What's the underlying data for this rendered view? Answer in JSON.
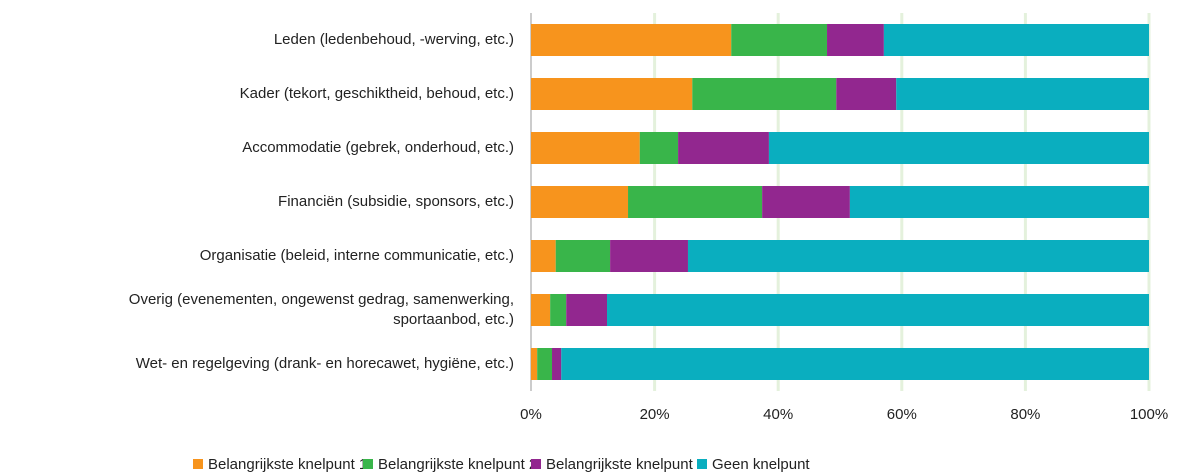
{
  "chart_data": {
    "type": "stacked-barh",
    "categories": [
      "Leden (ledenbehoud, -werving, etc.)",
      "Kader (tekort, geschiktheid, behoud, etc.)",
      "Accommodatie (gebrek, onderhoud, etc.)",
      "Financiën (subsidie, sponsors, etc.)",
      "Organisatie (beleid, interne communicatie, etc.)",
      [
        "Overig (evenementen, ongewenst gedrag, samenwerking,",
        "sportaanbod, etc.)"
      ],
      "Wet- en regelgeving (drank- en horecawet, hygiëne, etc.)"
    ],
    "series": [
      {
        "name": "Belangrijkste knelpunt 1",
        "color": "#f7941d",
        "values": [
          32.4,
          26.1,
          17.6,
          15.7,
          4.0,
          3.1,
          1.0
        ]
      },
      {
        "name": "Belangrijkste knelpunt 2",
        "color": "#39b54a",
        "values": [
          15.5,
          23.3,
          6.2,
          21.7,
          8.8,
          2.6,
          2.4
        ]
      },
      {
        "name": "Belangrijkste knelpunt 3",
        "color": "#92278f",
        "values": [
          9.2,
          9.7,
          14.7,
          14.2,
          12.6,
          6.6,
          1.5
        ]
      },
      {
        "name": "Geen knelpunt",
        "color": "#0aaebf",
        "values": [
          42.9,
          40.9,
          61.5,
          48.4,
          74.6,
          87.7,
          95.1
        ]
      }
    ],
    "xlim": [
      0,
      100
    ],
    "xticks": [
      {
        "value": 0,
        "label": "0%"
      },
      {
        "value": 20,
        "label": "20%"
      },
      {
        "value": 40,
        "label": "40%"
      },
      {
        "value": 60,
        "label": "60%"
      },
      {
        "value": 80,
        "label": "80%"
      },
      {
        "value": 100,
        "label": "100%"
      }
    ],
    "grid": true,
    "legend": "bottom"
  }
}
